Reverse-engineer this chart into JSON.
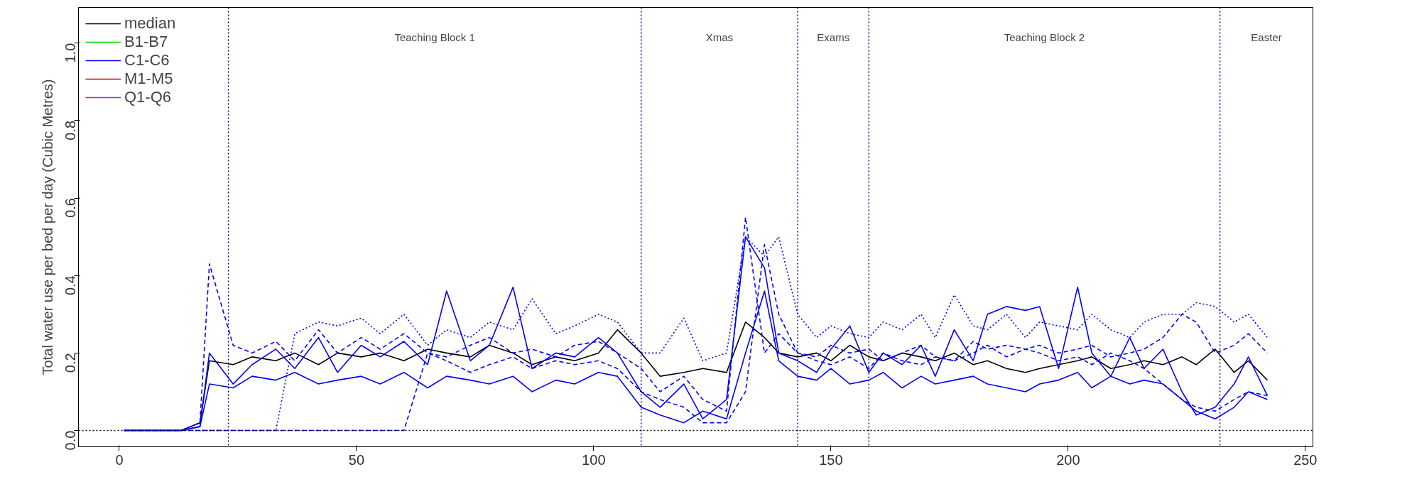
{
  "chart_data": {
    "type": "line",
    "ylabel": "Total water use per bed per day (Cubic Metres)",
    "x": [
      1,
      5,
      9,
      13,
      17,
      19,
      24,
      28,
      33,
      37,
      42,
      46,
      51,
      55,
      60,
      65,
      69,
      74,
      78,
      83,
      87,
      92,
      96,
      101,
      105,
      110,
      114,
      119,
      123,
      128,
      132,
      136,
      139,
      143,
      147,
      150,
      154,
      158,
      161,
      165,
      169,
      172,
      176,
      180,
      183,
      187,
      191,
      194,
      198,
      202,
      205,
      209,
      213,
      216,
      220,
      224,
      227,
      231,
      235,
      238,
      242
    ],
    "xlim": [
      -8.6,
      251.6
    ],
    "xticks": [
      0,
      50,
      100,
      150,
      200,
      250
    ],
    "ylim": [
      -0.042,
      1.092
    ],
    "yticks": [
      {
        "value": 0,
        "label": "0.0"
      },
      0.2,
      0.4,
      0.6,
      0.8,
      {
        "value": 1,
        "label": "1.0"
      }
    ],
    "grid": false,
    "legend": "top left",
    "series": [
      {
        "name": "median",
        "color": "#000000",
        "line_style": "solid",
        "values": [
          0,
          0,
          0,
          0,
          0.02,
          0.18,
          0.17,
          0.19,
          0.18,
          0.2,
          0.17,
          0.2,
          0.19,
          0.2,
          0.18,
          0.21,
          0.2,
          0.19,
          0.22,
          0.2,
          0.17,
          0.19,
          0.18,
          0.2,
          0.26,
          0.2,
          0.14,
          0.15,
          0.16,
          0.15,
          0.28,
          0.24,
          0.2,
          0.19,
          0.2,
          0.18,
          0.22,
          0.19,
          0.18,
          0.2,
          0.19,
          0.18,
          0.2,
          0.17,
          0.18,
          0.16,
          0.15,
          0.16,
          0.17,
          0.18,
          0.19,
          0.16,
          0.17,
          0.18,
          0.17,
          0.19,
          0.17,
          0.21,
          0.15,
          0.18,
          0.13
        ]
      },
      {
        "name": "B1-B7",
        "color": "#00cd00",
        "line_style": "solid",
        "values": [
          null,
          null,
          null,
          null,
          null,
          null,
          null,
          null,
          null,
          null,
          null,
          null,
          null,
          null,
          null,
          null,
          null,
          null,
          null,
          null,
          null,
          null,
          null,
          null,
          null,
          null,
          null,
          null,
          null,
          null,
          null,
          null,
          null,
          null,
          null,
          null,
          null,
          null,
          null,
          null,
          null,
          null,
          null,
          null,
          null,
          null,
          null,
          null,
          null,
          null,
          null,
          null,
          null,
          null,
          null,
          null,
          null,
          null,
          null,
          null,
          null
        ]
      },
      {
        "name": "C1-C6",
        "color": "#0000ff",
        "line_style": "solid",
        "values": [
          0,
          0,
          0,
          0,
          0.01,
          0.2,
          0.12,
          0.17,
          0.21,
          0.16,
          0.24,
          0.15,
          0.22,
          0.19,
          0.23,
          0.17,
          0.36,
          0.18,
          0.22,
          0.37,
          0.16,
          0.2,
          0.19,
          0.24,
          0.2,
          0.1,
          0.06,
          0.12,
          0.03,
          0.08,
          0.5,
          0.42,
          0.2,
          0.18,
          0.15,
          0.21,
          0.27,
          0.15,
          0.2,
          0.17,
          0.22,
          0.14,
          0.26,
          0.18,
          0.3,
          0.32,
          0.31,
          0.32,
          0.16,
          0.37,
          0.2,
          0.14,
          0.24,
          0.16,
          0.21,
          0.1,
          0.04,
          0.06,
          0.12,
          0.19,
          0.09
        ]
      },
      {
        "name": "M1-M5",
        "color": "#cd0000",
        "line_style": "solid",
        "values": [
          null,
          null,
          null,
          null,
          null,
          null,
          null,
          null,
          null,
          null,
          null,
          null,
          null,
          null,
          null,
          null,
          null,
          null,
          null,
          null,
          null,
          null,
          null,
          null,
          null,
          null,
          null,
          null,
          null,
          null,
          null,
          null,
          null,
          null,
          null,
          null,
          null,
          null,
          null,
          null,
          null,
          null,
          null,
          null,
          null,
          null,
          null,
          null,
          null,
          null,
          null,
          null,
          null,
          null,
          null,
          null,
          null,
          null,
          null,
          null,
          null
        ]
      },
      {
        "name": "Q1-Q6",
        "color": "#a020f0",
        "line_style": "solid",
        "values": [
          null,
          null,
          null,
          null,
          null,
          null,
          null,
          null,
          null,
          null,
          null,
          null,
          null,
          null,
          null,
          null,
          null,
          null,
          null,
          null,
          null,
          null,
          null,
          null,
          null,
          null,
          null,
          null,
          null,
          null,
          null,
          null,
          null,
          null,
          null,
          null,
          null,
          null,
          null,
          null,
          null,
          null,
          null,
          null,
          null,
          null,
          null,
          null,
          null,
          null,
          null,
          null,
          null,
          null,
          null,
          null,
          null,
          null,
          null,
          null,
          null
        ]
      },
      {
        "color": "#0000ff",
        "line_style": "solid",
        "values": [
          0,
          0,
          0,
          0,
          0.01,
          0.12,
          0.11,
          0.14,
          0.13,
          0.15,
          0.12,
          0.13,
          0.14,
          0.12,
          0.15,
          0.11,
          0.14,
          0.13,
          0.12,
          0.14,
          0.1,
          0.13,
          0.12,
          0.15,
          0.14,
          0.06,
          0.04,
          0.02,
          0.05,
          0.03,
          0.2,
          0.36,
          0.18,
          0.14,
          0.13,
          0.16,
          0.12,
          0.13,
          0.15,
          0.11,
          0.14,
          0.12,
          0.13,
          0.14,
          0.12,
          0.11,
          0.1,
          0.12,
          0.13,
          0.15,
          0.11,
          0.14,
          0.12,
          0.13,
          0.12,
          0.08,
          0.05,
          0.03,
          0.06,
          0.1,
          0.08
        ]
      },
      {
        "color": "#0000ff",
        "line_style": "dashed",
        "values": [
          0,
          0,
          0,
          0,
          0.02,
          0.43,
          0.22,
          0.2,
          0.23,
          0.18,
          0.26,
          0.2,
          0.24,
          0.21,
          0.25,
          0.2,
          0.19,
          0.22,
          0.24,
          0.2,
          0.21,
          0.19,
          0.22,
          0.23,
          0.2,
          0.16,
          0.1,
          0.14,
          0.08,
          0.05,
          0.55,
          0.2,
          0.25,
          0.2,
          0.19,
          0.22,
          0.2,
          0.21,
          0.18,
          0.2,
          0.22,
          0.19,
          0.18,
          0.23,
          0.21,
          0.22,
          0.21,
          0.22,
          0.2,
          0.21,
          0.22,
          0.19,
          0.2,
          0.21,
          0.24,
          0.3,
          0.28,
          0.2,
          0.22,
          0.25,
          0.2
        ]
      },
      {
        "color": "#0000ff",
        "line_style": "dotted",
        "values": [
          0,
          0,
          0,
          0,
          0,
          0,
          0,
          0,
          0,
          0.25,
          0.28,
          0.27,
          0.29,
          0.25,
          0.3,
          0.22,
          0.26,
          0.24,
          0.28,
          0.26,
          0.34,
          0.25,
          0.27,
          0.3,
          0.28,
          0.2,
          0.2,
          0.29,
          0.18,
          0.2,
          0.5,
          0.45,
          0.5,
          0.3,
          0.24,
          0.27,
          0.25,
          0.24,
          0.28,
          0.26,
          0.3,
          0.24,
          0.35,
          0.27,
          0.26,
          0.3,
          0.24,
          0.28,
          0.27,
          0.26,
          0.3,
          0.26,
          0.24,
          0.28,
          0.3,
          0.3,
          0.33,
          0.32,
          0.28,
          0.3,
          0.24
        ]
      },
      {
        "color": "#0000ff",
        "line_style": "dashed",
        "values": [
          0,
          0,
          0,
          0,
          0,
          0,
          0,
          0,
          0,
          0,
          0,
          0,
          0,
          0,
          0,
          0.2,
          0.18,
          0.15,
          0.17,
          0.19,
          0.16,
          0.18,
          0.17,
          0.18,
          0.16,
          0.1,
          0.08,
          0.06,
          0.02,
          0.02,
          0.1,
          0.48,
          0.3,
          0.2,
          0.18,
          0.17,
          0.19,
          0.16,
          0.2,
          0.18,
          0.17,
          0.19,
          0.18,
          0.2,
          0.22,
          0.19,
          0.21,
          0.2,
          0.18,
          0.19,
          0.17,
          0.2,
          0.18,
          0.16,
          0.12,
          0.08,
          0.06,
          0.05,
          0.08,
          0.1,
          0.09
        ]
      }
    ],
    "ref_lines": [
      {
        "axis": "y",
        "value": 0,
        "color": "#000000",
        "line_style": "dotted"
      },
      {
        "axis": "x",
        "value": 23,
        "color": "#00008b",
        "line_style": "dotted"
      },
      {
        "axis": "x",
        "value": 110,
        "color": "#00008b",
        "line_style": "dotted"
      },
      {
        "axis": "x",
        "value": 143,
        "color": "#00008b",
        "line_style": "dotted"
      },
      {
        "axis": "x",
        "value": 158,
        "color": "#00008b",
        "line_style": "dotted"
      },
      {
        "axis": "x",
        "value": 232,
        "color": "#00008b",
        "line_style": "dotted"
      }
    ],
    "annotations": [
      "Teaching Block 1",
      "Xmas",
      "Exams",
      "Teaching Block 2",
      "Easter"
    ]
  }
}
